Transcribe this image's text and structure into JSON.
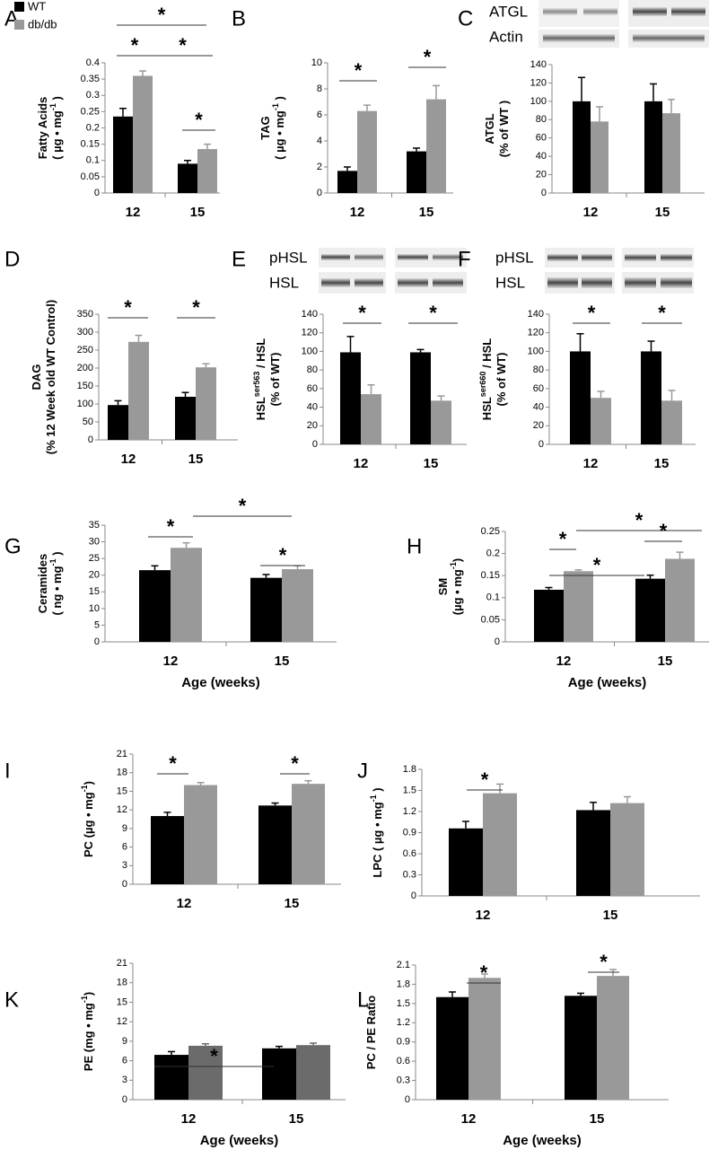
{
  "chart_data": [
    {
      "type": "bar",
      "panel": "A",
      "ylabel": [
        [
          "Fatty Acids"
        ],
        [
          "( µg • mg",
          "-1",
          " )"
        ]
      ],
      "categories": [
        "12",
        "15"
      ],
      "legend": true,
      "series": [
        {
          "name": "WT",
          "color": "#000000",
          "values": [
            0.235,
            0.09
          ],
          "errors": [
            0.025,
            0.01
          ]
        },
        {
          "name": "db/db",
          "color": "#999999",
          "values": [
            0.36,
            0.135
          ],
          "errors": [
            0.015,
            0.015
          ]
        }
      ],
      "ylim": [
        0,
        0.4
      ],
      "yticks": [
        0,
        0.05,
        0.1,
        0.15,
        0.2,
        0.25,
        0.3,
        0.35,
        0.4
      ],
      "annotations": [
        "*",
        "*",
        "*",
        "*"
      ]
    },
    {
      "type": "bar",
      "panel": "B",
      "ylabel": [
        [
          "TAG"
        ],
        [
          "( µg • mg",
          "-1",
          " )"
        ]
      ],
      "categories": [
        "12",
        "15"
      ],
      "series": [
        {
          "color": "#000000",
          "values": [
            1.7,
            3.2
          ],
          "errors": [
            0.3,
            0.25
          ]
        },
        {
          "color": "#999999",
          "values": [
            6.3,
            7.2
          ],
          "errors": [
            0.45,
            1.05
          ]
        }
      ],
      "ylim": [
        0,
        10
      ],
      "yticks": [
        0,
        2,
        4,
        6,
        8,
        10
      ],
      "annotations": [
        "*",
        "*"
      ]
    },
    {
      "type": "bar",
      "panel": "C",
      "ylabel": [
        [
          "ATGL"
        ],
        [
          "(% of WT )"
        ]
      ],
      "categories": [
        "12",
        "15"
      ],
      "blot_labels": [
        "ATGL",
        "Actin"
      ],
      "series": [
        {
          "color": "#000000",
          "values": [
            100,
            100
          ],
          "errors": [
            26,
            19
          ]
        },
        {
          "color": "#999999",
          "values": [
            78,
            87
          ],
          "errors": [
            16,
            15
          ]
        }
      ],
      "ylim": [
        0,
        140
      ],
      "yticks": [
        0,
        20,
        40,
        60,
        80,
        100,
        120,
        140
      ],
      "annotations": []
    },
    {
      "type": "bar",
      "panel": "D",
      "ylabel": [
        [
          "DAG"
        ],
        [
          "(% 12 Week old WT Control)"
        ]
      ],
      "categories": [
        "12",
        "15"
      ],
      "series": [
        {
          "color": "#000000",
          "values": [
            97,
            120
          ],
          "errors": [
            12,
            12
          ]
        },
        {
          "color": "#999999",
          "values": [
            273,
            202
          ],
          "errors": [
            18,
            10
          ]
        }
      ],
      "ylim": [
        0,
        350
      ],
      "yticks": [
        0,
        50,
        100,
        150,
        200,
        250,
        300,
        350
      ],
      "annotations": [
        "*",
        "*"
      ]
    },
    {
      "type": "bar",
      "panel": "E",
      "ylabel": [
        [
          "HSL",
          "ser563",
          " / HSL"
        ],
        [
          "(% of WT)"
        ]
      ],
      "categories": [
        "12",
        "15"
      ],
      "blot_labels": [
        "pHSL",
        "HSL"
      ],
      "series": [
        {
          "color": "#000000",
          "values": [
            99,
            99
          ],
          "errors": [
            17,
            3
          ]
        },
        {
          "color": "#999999",
          "values": [
            54,
            47
          ],
          "errors": [
            10,
            5
          ]
        }
      ],
      "ylim": [
        0,
        140
      ],
      "yticks": [
        0,
        20,
        40,
        60,
        80,
        100,
        120,
        140
      ],
      "annotations": [
        "*",
        "*"
      ]
    },
    {
      "type": "bar",
      "panel": "F",
      "ylabel": [
        [
          "HSL",
          "ser660",
          " / HSL"
        ],
        [
          "(% of WT)"
        ]
      ],
      "categories": [
        "12",
        "15"
      ],
      "blot_labels": [
        "pHSL",
        "HSL"
      ],
      "series": [
        {
          "color": "#000000",
          "values": [
            100,
            100
          ],
          "errors": [
            19,
            11
          ]
        },
        {
          "color": "#999999",
          "values": [
            50,
            47
          ],
          "errors": [
            7,
            11
          ]
        }
      ],
      "ylim": [
        0,
        140
      ],
      "yticks": [
        0,
        20,
        40,
        60,
        80,
        100,
        120,
        140
      ],
      "annotations": [
        "*",
        "*"
      ]
    },
    {
      "type": "bar",
      "panel": "G",
      "ylabel": [
        [
          "Ceramides"
        ],
        [
          "( ng • mg",
          "-1",
          " )"
        ]
      ],
      "xlabel": "Age (weeks)",
      "categories": [
        "12",
        "15"
      ],
      "series": [
        {
          "color": "#000000",
          "values": [
            21.5,
            19.2
          ],
          "errors": [
            1.3,
            1
          ]
        },
        {
          "color": "#999999",
          "values": [
            28.2,
            21.8
          ],
          "errors": [
            1.5,
            1
          ]
        }
      ],
      "ylim": [
        0,
        35
      ],
      "yticks": [
        0,
        5,
        10,
        15,
        20,
        25,
        30,
        35
      ],
      "annotations": [
        "*",
        "*",
        "*"
      ]
    },
    {
      "type": "bar",
      "panel": "H",
      "ylabel": [
        [
          "SM"
        ],
        [
          "(µg • mg",
          "-1",
          ")"
        ]
      ],
      "xlabel": "Age (weeks)",
      "categories": [
        "12",
        "15"
      ],
      "series": [
        {
          "color": "#000000",
          "values": [
            0.118,
            0.143
          ],
          "errors": [
            0.005,
            0.008
          ]
        },
        {
          "color": "#999999",
          "values": [
            0.16,
            0.188
          ],
          "errors": [
            0.003,
            0.015
          ]
        }
      ],
      "ylim": [
        0,
        0.25
      ],
      "yticks": [
        0,
        0.05,
        0.1,
        0.15,
        0.2,
        0.25
      ],
      "annotations": [
        "*",
        "*",
        "*",
        "*"
      ]
    },
    {
      "type": "bar",
      "panel": "I",
      "ylabel": [
        [
          "PC  (µg • mg",
          "-1",
          ")"
        ]
      ],
      "categories": [
        "12",
        "15"
      ],
      "series": [
        {
          "color": "#000000",
          "values": [
            11,
            12.7
          ],
          "errors": [
            0.6,
            0.4
          ]
        },
        {
          "color": "#999999",
          "values": [
            16,
            16.2
          ],
          "errors": [
            0.4,
            0.5
          ]
        }
      ],
      "ylim": [
        0,
        21
      ],
      "yticks": [
        0,
        3,
        6,
        9,
        12,
        15,
        18,
        21
      ],
      "annotations": [
        "*",
        "*"
      ]
    },
    {
      "type": "bar",
      "panel": "J",
      "ylabel": [
        [
          "LPC  ( µg • mg",
          "-1",
          " )"
        ]
      ],
      "categories": [
        "12",
        "15"
      ],
      "series": [
        {
          "color": "#000000",
          "values": [
            0.96,
            1.22
          ],
          "errors": [
            0.1,
            0.11
          ]
        },
        {
          "color": "#999999",
          "values": [
            1.46,
            1.32
          ],
          "errors": [
            0.13,
            0.09
          ]
        }
      ],
      "ylim": [
        0,
        1.8
      ],
      "yticks": [
        0,
        0.3,
        0.6,
        0.9,
        1.2,
        1.5,
        1.8
      ],
      "annotations": [
        "*"
      ]
    },
    {
      "type": "bar",
      "panel": "K",
      "ylabel": [
        [
          "PE (mg • mg",
          "-1",
          ")"
        ]
      ],
      "xlabel": "Age (weeks)",
      "categories": [
        "12",
        "15"
      ],
      "series": [
        {
          "color": "#000000",
          "values": [
            6.9,
            7.9
          ],
          "errors": [
            0.5,
            0.3
          ]
        },
        {
          "color": "#6b6b6b",
          "values": [
            8.3,
            8.4
          ],
          "errors": [
            0.3,
            0.3
          ]
        }
      ],
      "ylim": [
        0,
        21
      ],
      "yticks": [
        0,
        3,
        6,
        9,
        12,
        15,
        18,
        21
      ],
      "annotations": [
        "*"
      ]
    },
    {
      "type": "bar",
      "panel": "L",
      "ylabel": [
        [
          "PC / PE Ratio"
        ]
      ],
      "xlabel": "Age (weeks)",
      "categories": [
        "12",
        "15"
      ],
      "series": [
        {
          "color": "#000000",
          "values": [
            1.6,
            1.62
          ],
          "errors": [
            0.08,
            0.04
          ]
        },
        {
          "color": "#999999",
          "values": [
            1.9,
            1.93
          ],
          "errors": [
            0.06,
            0.1
          ]
        }
      ],
      "ylim": [
        0,
        2.1
      ],
      "yticks": [
        0,
        0.3,
        0.6,
        0.9,
        1.2,
        1.5,
        1.8,
        2.1
      ],
      "annotations": [
        "*",
        "*"
      ]
    }
  ]
}
